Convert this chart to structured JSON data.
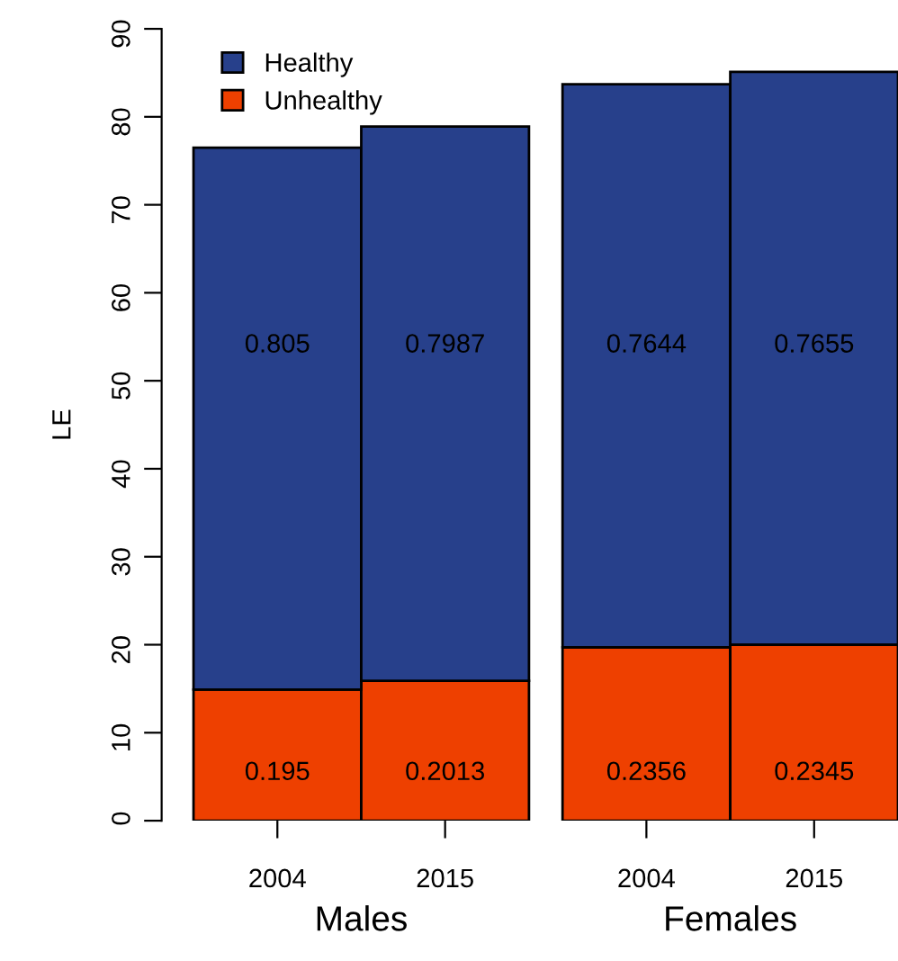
{
  "chart_data": {
    "type": "bar",
    "stacked": true,
    "ylabel": "LE",
    "categories": [
      "2004",
      "2015",
      "2004",
      "2015"
    ],
    "series": [
      {
        "name": "Unhealthy",
        "color": "#ee4000",
        "values": [
          14.9,
          15.9,
          19.7,
          20.0
        ]
      },
      {
        "name": "Healthy",
        "color": "#27408b",
        "values": [
          61.6,
          63.0,
          64.0,
          65.1
        ]
      }
    ],
    "annotations": [
      "Males",
      "Females",
      "0.195",
      "0.2013",
      "0.2356",
      "0.2345",
      "0.805",
      "0.7987",
      "0.7644",
      "0.7655"
    ],
    "ylim": [
      0,
      90
    ],
    "yticks": [
      0,
      10,
      20,
      30,
      40,
      50,
      60,
      70,
      80,
      90
    ],
    "grid": false,
    "legend": "top left"
  }
}
